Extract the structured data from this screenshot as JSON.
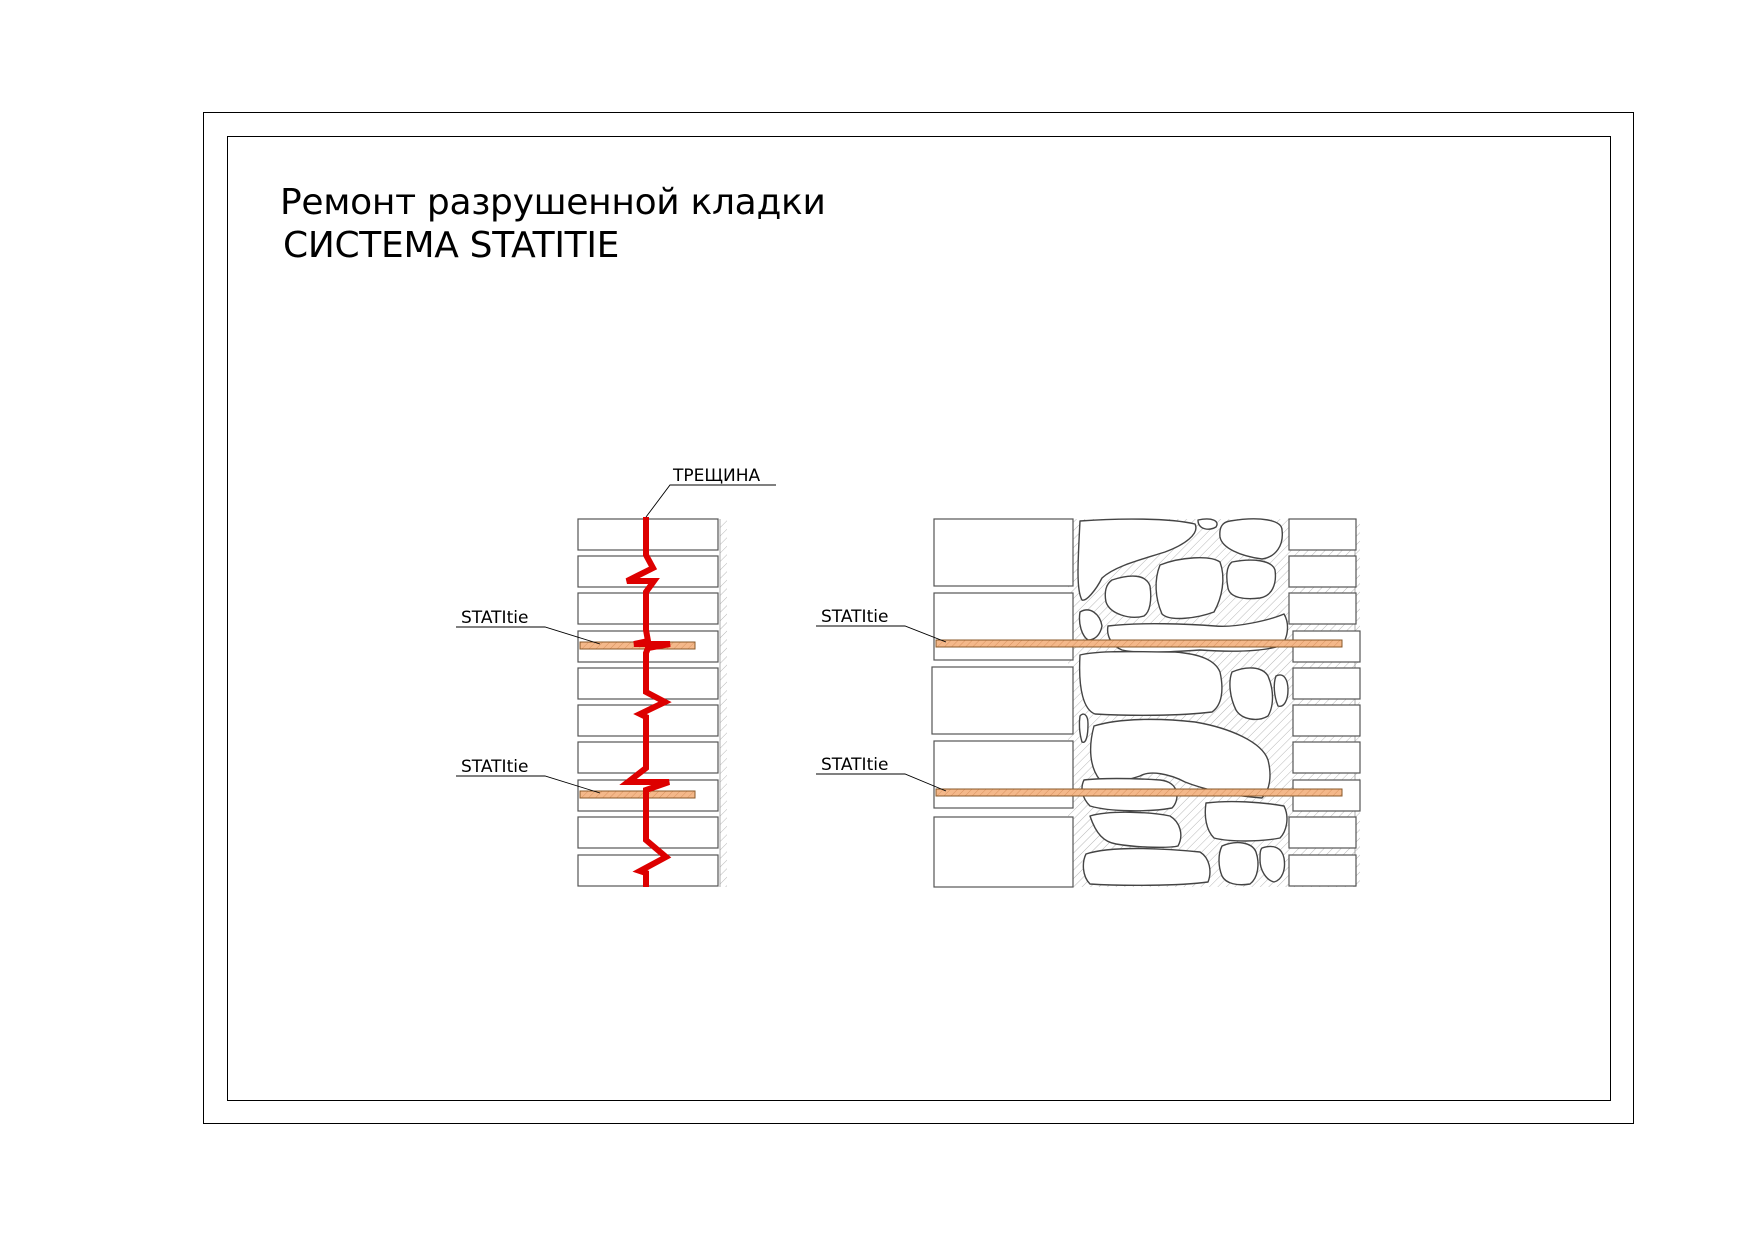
{
  "title": {
    "line1": "Ремонт разрушенной кладки",
    "line2": "СИСТЕМА STATITIE"
  },
  "labels": {
    "crack": "ТРЕЩИНА",
    "tie_left_top": "STATItie",
    "tie_left_bottom": "STATItie",
    "tie_right_top": "STATItie",
    "tie_right_bottom": "STATItie"
  },
  "colors": {
    "crack": "#dd0000",
    "tie_fill": "#f4b88a",
    "tie_stroke": "#8a5a2b",
    "mortar_hatch": "#b8b8b8",
    "line": "#000000"
  }
}
